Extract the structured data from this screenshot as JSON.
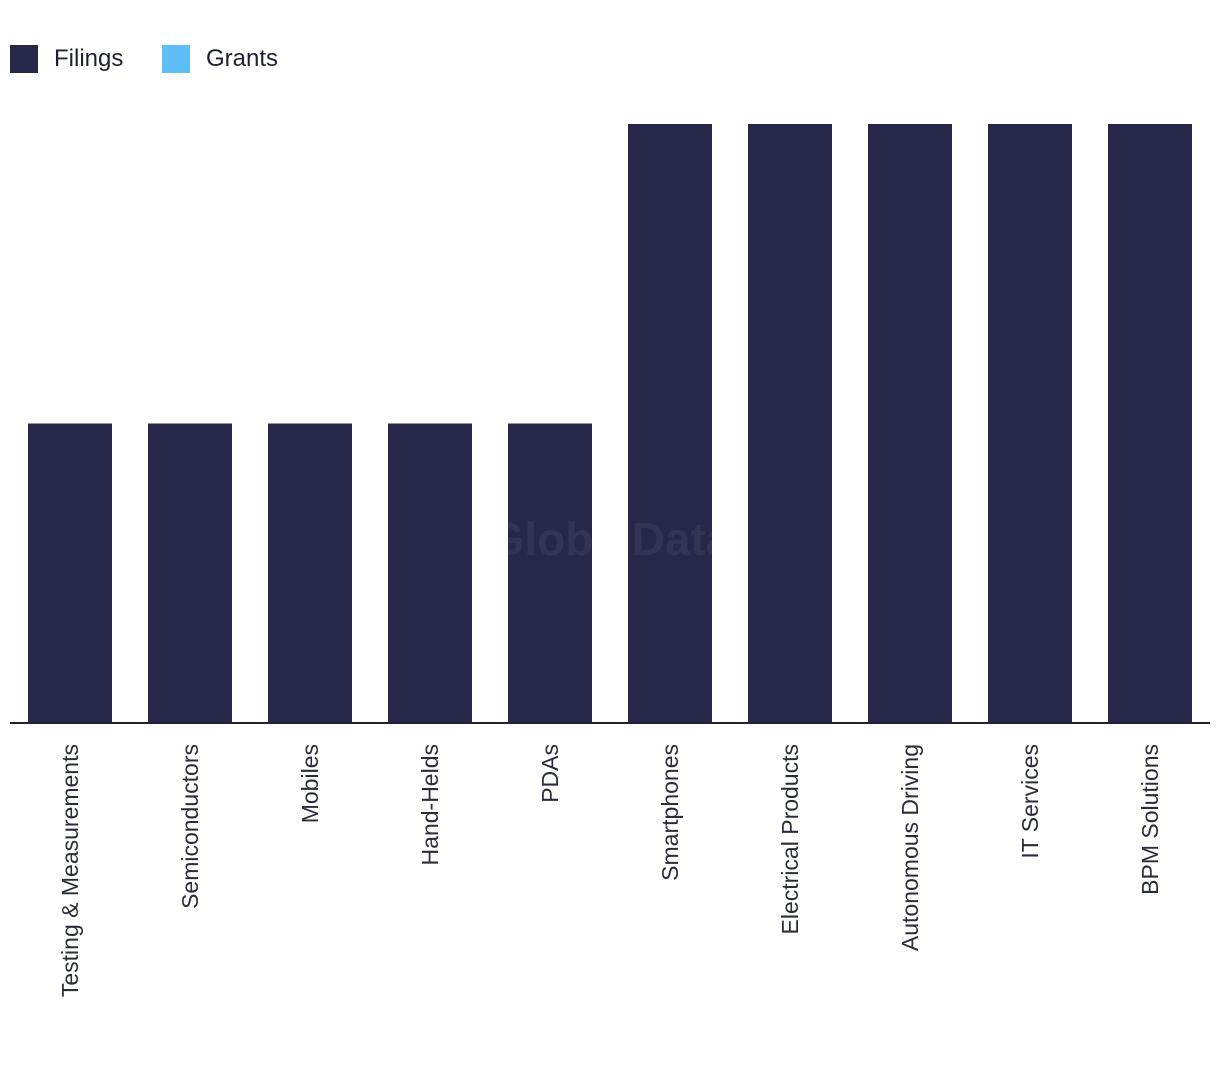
{
  "watermark": "GlobalData",
  "chart_data": {
    "type": "bar",
    "categories": [
      "Testing & Measurements",
      "Semiconductors",
      "Mobiles",
      "Hand-Helds",
      "PDAs",
      "Smartphones",
      "Electrical Products",
      "Autonomous Driving",
      "IT Services",
      "BPM Solutions"
    ],
    "series": [
      {
        "name": "Filings",
        "color": "#272849",
        "values": [
          1,
          1,
          1,
          1,
          1,
          2,
          2,
          2,
          2,
          2
        ]
      },
      {
        "name": "Grants",
        "color": "#5ebff8",
        "values": [
          0,
          0,
          0,
          0,
          0,
          0,
          0,
          0,
          0,
          0
        ]
      }
    ],
    "ylim": [
      0,
      2
    ],
    "grid": false,
    "legend": "top-left",
    "xlabel": "",
    "ylabel": ""
  }
}
